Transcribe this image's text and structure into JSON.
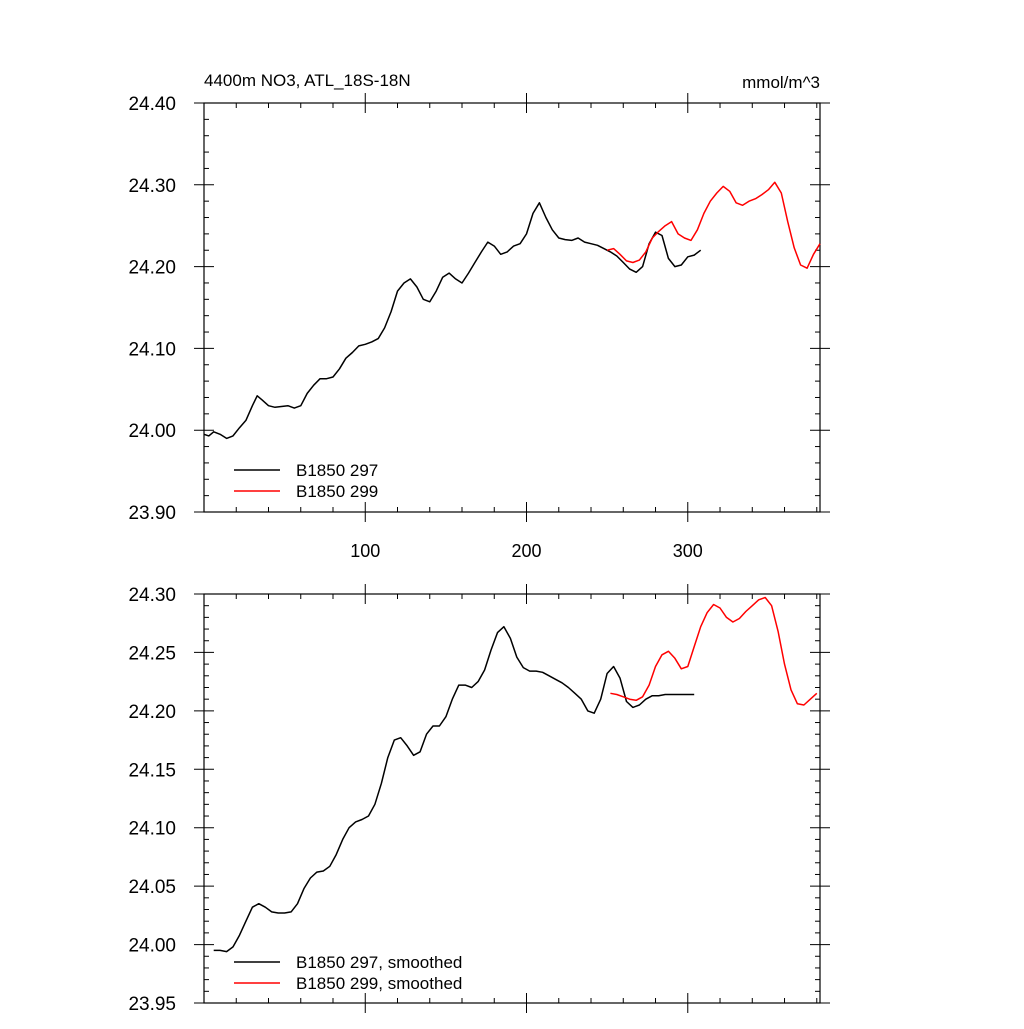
{
  "chart_data": [
    {
      "type": "line",
      "title": "4400m NO3, ATL_18S-18N",
      "units": "mmol/m^3",
      "xlabel": "",
      "ylabel": "",
      "xlim": [
        0,
        382
      ],
      "ylim": [
        23.9,
        24.4
      ],
      "xticks": [
        100,
        200,
        300
      ],
      "xtick_labels": [
        "100",
        "200",
        "300"
      ],
      "yticks": [
        23.9,
        24.0,
        24.1,
        24.2,
        24.3,
        24.4
      ],
      "ytick_labels": [
        "23.90",
        "24.00",
        "24.10",
        "24.20",
        "24.30",
        "24.40"
      ],
      "grid": false,
      "legend_position": "bottom-left",
      "series": [
        {
          "name": "B1850 297",
          "color": "#000000",
          "x": [
            0,
            3,
            6,
            10,
            14,
            18,
            22,
            26,
            30,
            33,
            36,
            40,
            44,
            48,
            52,
            56,
            60,
            64,
            68,
            72,
            76,
            80,
            84,
            88,
            92,
            96,
            100,
            104,
            108,
            112,
            116,
            120,
            124,
            128,
            132,
            136,
            140,
            144,
            148,
            152,
            156,
            160,
            164,
            168,
            172,
            176,
            180,
            184,
            188,
            192,
            196,
            200,
            204,
            208,
            212,
            216,
            220,
            224,
            228,
            232,
            236,
            240,
            244,
            248,
            252,
            256,
            260,
            264,
            268,
            272,
            276,
            280,
            284,
            288,
            292,
            296,
            300,
            304,
            308
          ],
          "values": [
            23.995,
            23.993,
            23.998,
            23.995,
            23.99,
            23.993,
            24.003,
            24.012,
            24.03,
            24.042,
            24.037,
            24.03,
            24.028,
            24.029,
            24.03,
            24.027,
            24.03,
            24.045,
            24.055,
            24.063,
            24.063,
            24.065,
            24.075,
            24.088,
            24.095,
            24.103,
            24.105,
            24.108,
            24.112,
            24.125,
            24.145,
            24.17,
            24.18,
            24.185,
            24.175,
            24.16,
            24.157,
            24.17,
            24.187,
            24.192,
            24.185,
            24.18,
            24.192,
            24.205,
            24.218,
            24.23,
            24.225,
            24.215,
            24.218,
            24.225,
            24.228,
            24.24,
            24.265,
            24.278,
            24.26,
            24.245,
            24.235,
            24.233,
            24.232,
            24.235,
            24.23,
            24.228,
            24.226,
            24.222,
            24.218,
            24.213,
            24.205,
            24.197,
            24.193,
            24.2,
            24.228,
            24.242,
            24.238,
            24.21,
            24.2,
            24.202,
            24.212,
            24.214,
            24.22
          ]
        },
        {
          "name": "B1850 299",
          "color": "#ff0000",
          "x": [
            250,
            254,
            258,
            262,
            266,
            270,
            274,
            278,
            282,
            286,
            290,
            294,
            298,
            302,
            306,
            310,
            314,
            318,
            322,
            326,
            330,
            334,
            338,
            342,
            346,
            350,
            354,
            358,
            362,
            366,
            370,
            374,
            378,
            382
          ],
          "values": [
            24.22,
            24.222,
            24.215,
            24.207,
            24.205,
            24.208,
            24.218,
            24.235,
            24.243,
            24.25,
            24.255,
            24.24,
            24.235,
            24.232,
            24.245,
            24.265,
            24.28,
            24.29,
            24.298,
            24.292,
            24.278,
            24.275,
            24.28,
            24.283,
            24.288,
            24.294,
            24.303,
            24.29,
            24.255,
            24.223,
            24.202,
            24.198,
            24.215,
            24.228
          ]
        }
      ]
    },
    {
      "type": "line",
      "title": "",
      "xlabel": "",
      "ylabel": "",
      "xlim": [
        0,
        382
      ],
      "ylim": [
        23.95,
        24.3
      ],
      "xticks": [
        100,
        200,
        300
      ],
      "yticks": [
        23.95,
        24.0,
        24.05,
        24.1,
        24.15,
        24.2,
        24.25,
        24.3
      ],
      "ytick_labels": [
        "23.95",
        "24.00",
        "24.05",
        "24.10",
        "24.15",
        "24.20",
        "24.25",
        "24.30"
      ],
      "grid": false,
      "legend_position": "bottom-left",
      "series": [
        {
          "name": "B1850 297, smoothed",
          "color": "#000000",
          "x": [
            6,
            10,
            14,
            18,
            22,
            26,
            30,
            34,
            38,
            42,
            46,
            50,
            54,
            58,
            62,
            66,
            70,
            74,
            78,
            82,
            86,
            90,
            94,
            98,
            102,
            106,
            110,
            114,
            118,
            122,
            126,
            130,
            134,
            138,
            142,
            146,
            150,
            154,
            158,
            162,
            166,
            170,
            174,
            178,
            182,
            186,
            190,
            194,
            198,
            202,
            206,
            210,
            214,
            218,
            222,
            226,
            230,
            234,
            238,
            242,
            246,
            250,
            254,
            258,
            262,
            266,
            270,
            274,
            278,
            282,
            286,
            290,
            294,
            298,
            302,
            304
          ],
          "values": [
            23.995,
            23.995,
            23.994,
            23.998,
            24.008,
            24.02,
            24.032,
            24.035,
            24.032,
            24.028,
            24.027,
            24.027,
            24.028,
            24.035,
            24.048,
            24.057,
            24.062,
            24.063,
            24.067,
            24.077,
            24.09,
            24.1,
            24.105,
            24.107,
            24.11,
            24.12,
            24.138,
            24.16,
            24.175,
            24.177,
            24.17,
            24.162,
            24.165,
            24.18,
            24.187,
            24.187,
            24.195,
            24.21,
            24.222,
            24.222,
            24.22,
            24.225,
            24.235,
            24.252,
            24.267,
            24.272,
            24.262,
            24.246,
            24.237,
            24.234,
            24.234,
            24.233,
            24.23,
            24.227,
            24.224,
            24.22,
            24.215,
            24.21,
            24.2,
            24.198,
            24.21,
            24.232,
            24.238,
            24.228,
            24.208,
            24.203,
            24.205,
            24.21,
            24.213,
            24.213,
            24.214,
            24.214,
            24.214,
            24.214,
            24.214,
            24.214
          ]
        },
        {
          "name": "B1850 299, smoothed",
          "color": "#ff0000",
          "x": [
            252,
            256,
            260,
            264,
            268,
            272,
            276,
            280,
            284,
            288,
            292,
            296,
            300,
            304,
            308,
            312,
            316,
            320,
            324,
            328,
            332,
            336,
            340,
            344,
            348,
            352,
            356,
            360,
            364,
            368,
            372,
            376,
            380
          ],
          "values": [
            24.215,
            24.214,
            24.212,
            24.21,
            24.209,
            24.212,
            24.222,
            24.238,
            24.248,
            24.251,
            24.245,
            24.236,
            24.238,
            24.255,
            24.272,
            24.284,
            24.291,
            24.288,
            24.28,
            24.276,
            24.279,
            24.285,
            24.29,
            24.295,
            24.297,
            24.29,
            24.268,
            24.24,
            24.218,
            24.206,
            24.205,
            24.21,
            24.215
          ]
        }
      ]
    }
  ]
}
